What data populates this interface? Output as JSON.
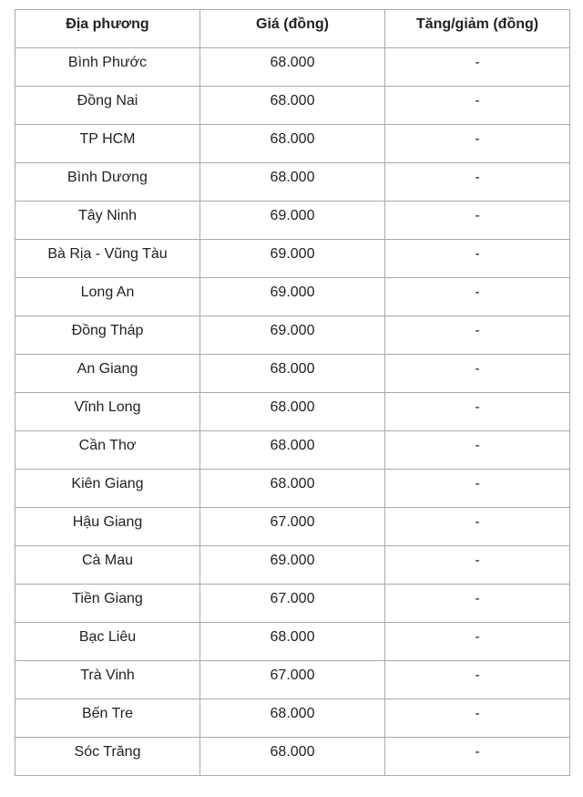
{
  "table": {
    "headers": [
      "Địa phương",
      "Giá (đồng)",
      "Tăng/giảm (đồng)"
    ],
    "rows": [
      [
        "Bình Phước",
        "68.000",
        "-"
      ],
      [
        "Đồng Nai",
        "68.000",
        "-"
      ],
      [
        "TP HCM",
        "68.000",
        "-"
      ],
      [
        "Bình Dương",
        "68.000",
        "-"
      ],
      [
        "Tây Ninh",
        "69.000",
        "-"
      ],
      [
        "Bà Rịa - Vũng Tàu",
        "69.000",
        "-"
      ],
      [
        "Long An",
        "69.000",
        "-"
      ],
      [
        "Đồng Tháp",
        "69.000",
        "-"
      ],
      [
        "An Giang",
        "68.000",
        "-"
      ],
      [
        "Vĩnh Long",
        "68.000",
        "-"
      ],
      [
        "Cần Thơ",
        "68.000",
        "-"
      ],
      [
        "Kiên Giang",
        "68.000",
        "-"
      ],
      [
        "Hậu Giang",
        "67.000",
        "-"
      ],
      [
        "Cà Mau",
        "69.000",
        "-"
      ],
      [
        "Tiền Giang",
        "67.000",
        "-"
      ],
      [
        "Bạc Liêu",
        "68.000",
        "-"
      ],
      [
        "Trà Vinh",
        "67.000",
        "-"
      ],
      [
        "Bến Tre",
        "68.000",
        "-"
      ],
      [
        "Sóc Trăng",
        "68.000",
        "-"
      ]
    ]
  }
}
